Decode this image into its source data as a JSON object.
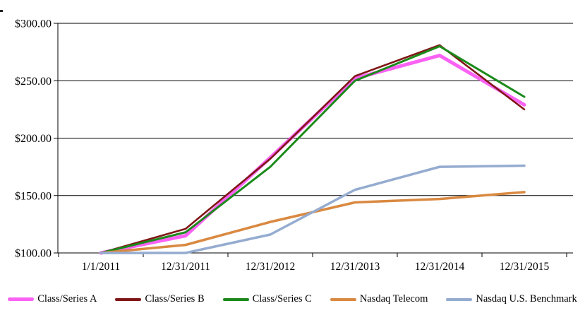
{
  "chart_data": {
    "type": "line",
    "title": "",
    "xlabel": "",
    "ylabel": "",
    "categories": [
      "1/1/2011",
      "12/31/2011",
      "12/31/2012",
      "12/31/2013",
      "12/31/2014",
      "12/31/2015"
    ],
    "series": [
      {
        "name": "Class/Series A",
        "color": "#FA62F4",
        "line_width": 5,
        "values": [
          100,
          115,
          183,
          252,
          272,
          229
        ]
      },
      {
        "name": "Class/Series B",
        "color": "#801617",
        "line_width": 2.6,
        "values": [
          100,
          121,
          182,
          254,
          281,
          225
        ]
      },
      {
        "name": "Class/Series C",
        "color": "#1B8A1B",
        "line_width": 3,
        "values": [
          100,
          118,
          175,
          250,
          280,
          236
        ]
      },
      {
        "name": "Nasdaq Telecom",
        "color": "#D98941",
        "line_width": 3.5,
        "values": [
          100,
          107,
          127,
          144,
          147,
          153
        ]
      },
      {
        "name": "Nasdaq U.S. Benchmark",
        "color": "#95ACD0",
        "line_width": 3.5,
        "values": [
          100,
          100,
          116,
          155,
          175,
          176
        ]
      }
    ],
    "y_ticks": [
      100,
      150,
      200,
      250,
      300
    ],
    "y_tick_labels": [
      "$100.00",
      "$150.00",
      "$200.00",
      "$250.00",
      "$300.00"
    ],
    "ylim": [
      100,
      300
    ],
    "grid": true,
    "axis_color": "#000000",
    "legend_position": "bottom"
  }
}
